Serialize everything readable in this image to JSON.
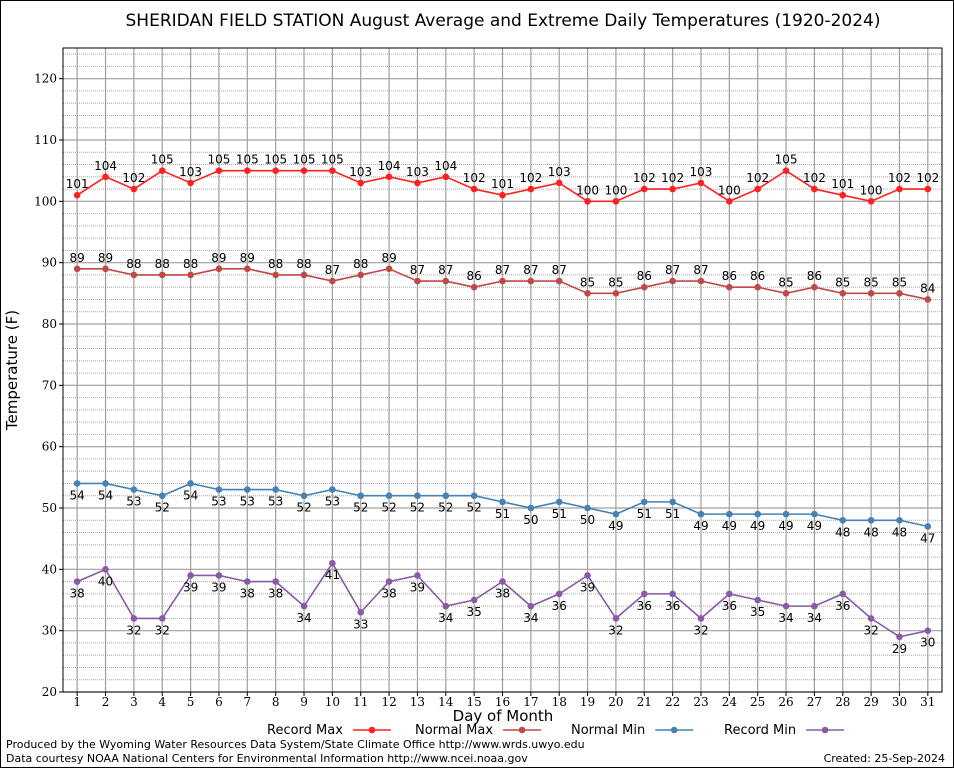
{
  "chart_data": {
    "type": "line",
    "title": "SHERIDAN FIELD STATION August Average and Extreme Daily Temperatures (1920-2024)",
    "xlabel": "Day of Month",
    "ylabel": "Temperature (F)",
    "ylim": [
      20,
      125
    ],
    "xlim": [
      0.5,
      31.5
    ],
    "yticks": [
      20,
      30,
      40,
      50,
      60,
      70,
      80,
      90,
      100,
      110,
      120
    ],
    "x": [
      1,
      2,
      3,
      4,
      5,
      6,
      7,
      8,
      9,
      10,
      11,
      12,
      13,
      14,
      15,
      16,
      17,
      18,
      19,
      20,
      21,
      22,
      23,
      24,
      25,
      26,
      27,
      28,
      29,
      30,
      31
    ],
    "grid": true,
    "legend_position": "bottom",
    "series": [
      {
        "name": "Record Max",
        "color": "#ff2020",
        "label_pos": "above",
        "values": [
          101,
          104,
          102,
          105,
          103,
          105,
          105,
          105,
          105,
          105,
          103,
          104,
          103,
          104,
          102,
          101,
          102,
          103,
          100,
          100,
          102,
          102,
          103,
          100,
          102,
          105,
          102,
          101,
          100,
          102,
          102
        ]
      },
      {
        "name": "Normal Max",
        "color": "#c04848",
        "label_pos": "above",
        "values": [
          89,
          89,
          88,
          88,
          88,
          89,
          89,
          88,
          88,
          87,
          88,
          89,
          87,
          87,
          86,
          87,
          87,
          87,
          85,
          85,
          86,
          87,
          87,
          86,
          86,
          85,
          86,
          85,
          85,
          85,
          84
        ]
      },
      {
        "name": "Normal Min",
        "color": "#4682b4",
        "label_pos": "below",
        "values": [
          54,
          54,
          53,
          52,
          54,
          53,
          53,
          53,
          52,
          53,
          52,
          52,
          52,
          52,
          52,
          51,
          50,
          51,
          50,
          49,
          51,
          51,
          49,
          49,
          49,
          49,
          49,
          48,
          48,
          48,
          47
        ]
      },
      {
        "name": "Record Min",
        "color": "#8a5aa8",
        "label_pos": "below",
        "values": [
          38,
          40,
          32,
          32,
          39,
          39,
          38,
          38,
          34,
          41,
          33,
          38,
          39,
          34,
          35,
          38,
          34,
          36,
          39,
          32,
          36,
          36,
          32,
          36,
          35,
          34,
          34,
          36,
          32,
          29,
          30
        ]
      }
    ]
  },
  "footer": {
    "left_line1": "Produced by the Wyoming Water Resources Data System/State Climate Office http://www.wrds.uwyo.edu",
    "left_line2": "Data courtesy NOAA National Centers for Environmental Information http://www.ncei.noaa.gov",
    "created": "Created:  25-Sep-2024"
  }
}
